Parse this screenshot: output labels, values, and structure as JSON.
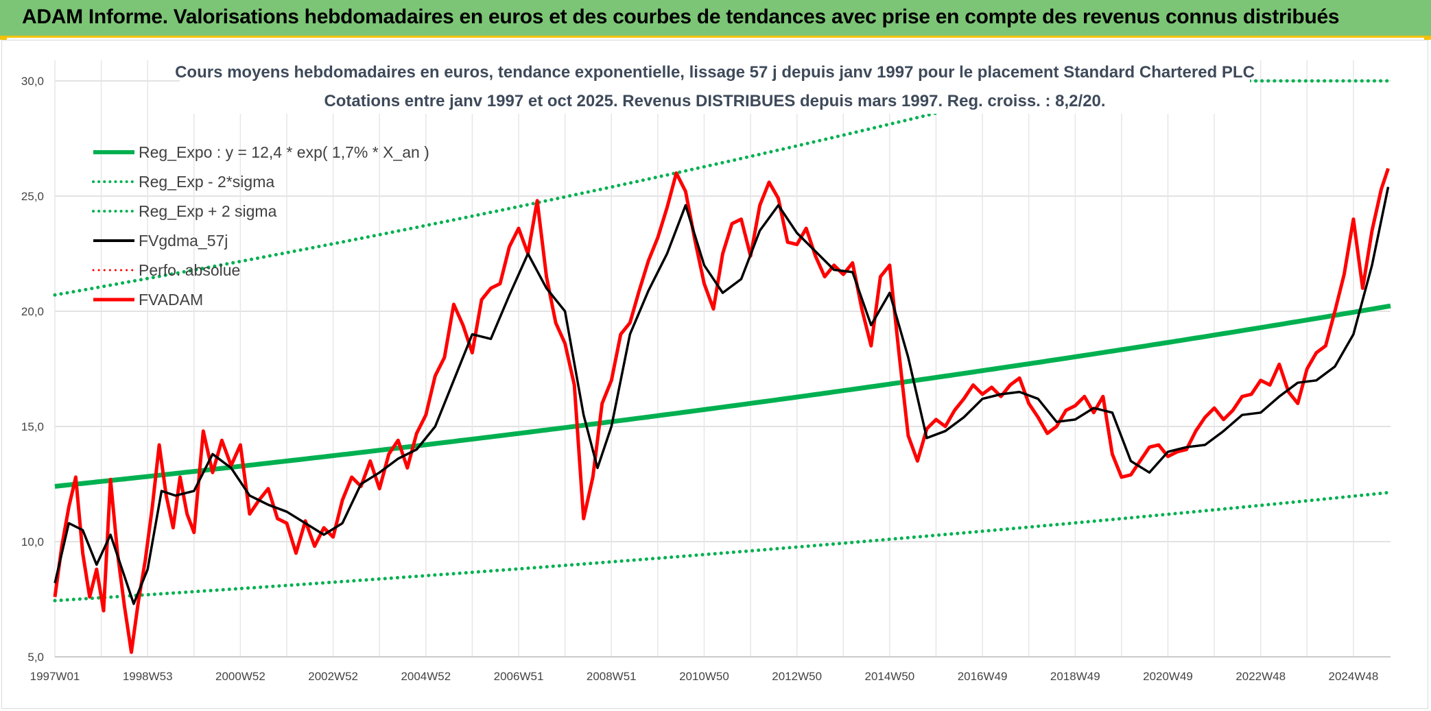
{
  "banner": {
    "title": "ADAM Informe. Valorisations hebdomadaires en euros et des courbes de tendances avec prise en compte des revenus connus distribués"
  },
  "colors": {
    "banner_bg": "#7cc576",
    "banner_border": "#f2c200",
    "trend": "#00b050",
    "price": "#ff0000",
    "smooth": "#000000",
    "grid": "#d9d9d9"
  },
  "chart_data": {
    "type": "line",
    "title": "Cours moyens hebdomadaires en euros, tendance exponentielle, lissage 57 j depuis janv 1997 pour le placement Standard Chartered PLC",
    "subtitle": "Cotations entre janv 1997 et oct 2025. Revenus DISTRIBUES depuis mars 1997. Reg. croiss. : 8,2/20.",
    "xlabel": "",
    "ylabel": "",
    "ylim": [
      5,
      30
    ],
    "xlim": [
      1997.0,
      2025.8
    ],
    "y_ticks": [
      "5,0",
      "10,0",
      "15,0",
      "20,0",
      "25,0",
      "30,0"
    ],
    "y_tick_values": [
      5,
      10,
      15,
      20,
      25,
      30
    ],
    "x_ticks": [
      "1997W01",
      "1998W53",
      "2000W52",
      "2002W52",
      "2004W52",
      "2006W51",
      "2008W51",
      "2010W50",
      "2012W50",
      "2014W50",
      "2016W49",
      "2018W49",
      "2020W49",
      "2022W48",
      "2024W48"
    ],
    "x_tick_positions": [
      1997.0,
      1999.0,
      2001.0,
      2003.0,
      2005.0,
      2007.0,
      2009.0,
      2011.0,
      2013.0,
      2015.0,
      2017.0,
      2019.0,
      2021.0,
      2023.0,
      2025.0
    ],
    "legend": [
      {
        "name": "Reg_Expo : y = 12,4 * exp( 1,7% *  X_an )",
        "color": "#00b050",
        "style": "solid",
        "width": 6
      },
      {
        "name": "Reg_Exp - 2*sigma",
        "color": "#00b050",
        "style": "dotted",
        "width": 4
      },
      {
        "name": "Reg_Exp + 2 sigma",
        "color": "#00b050",
        "style": "dotted",
        "width": 4
      },
      {
        "name": "FVgdma_57j",
        "color": "#000000",
        "style": "solid",
        "width": 4
      },
      {
        "name": "Perfo. absolue",
        "color": "#ff0000",
        "style": "dotted",
        "width": 3
      },
      {
        "name": "FVADAM",
        "color": "#ff0000",
        "style": "solid",
        "width": 5
      }
    ],
    "trend": {
      "a": 12.4,
      "rate": 0.017,
      "lower_factor": 0.6,
      "upper_factor": 1.67
    },
    "series": [
      {
        "name": "FVADAM",
        "x": [
          1997.0,
          1997.15,
          1997.3,
          1997.45,
          1997.6,
          1997.75,
          1997.9,
          1998.05,
          1998.2,
          1998.35,
          1998.5,
          1998.65,
          1998.8,
          1998.95,
          1999.1,
          1999.25,
          1999.4,
          1999.55,
          1999.7,
          1999.85,
          2000.0,
          2000.2,
          2000.4,
          2000.6,
          2000.8,
          2001.0,
          2001.2,
          2001.4,
          2001.6,
          2001.8,
          2002.0,
          2002.2,
          2002.4,
          2002.6,
          2002.8,
          2003.0,
          2003.2,
          2003.4,
          2003.6,
          2003.8,
          2004.0,
          2004.2,
          2004.4,
          2004.6,
          2004.8,
          2005.0,
          2005.2,
          2005.4,
          2005.6,
          2005.8,
          2006.0,
          2006.2,
          2006.4,
          2006.6,
          2006.8,
          2007.0,
          2007.2,
          2007.4,
          2007.6,
          2007.8,
          2008.0,
          2008.2,
          2008.4,
          2008.6,
          2008.8,
          2009.0,
          2009.2,
          2009.4,
          2009.6,
          2009.8,
          2010.0,
          2010.2,
          2010.4,
          2010.6,
          2010.8,
          2011.0,
          2011.2,
          2011.4,
          2011.6,
          2011.8,
          2012.0,
          2012.2,
          2012.4,
          2012.6,
          2012.8,
          2013.0,
          2013.2,
          2013.4,
          2013.6,
          2013.8,
          2014.0,
          2014.2,
          2014.4,
          2014.6,
          2014.8,
          2015.0,
          2015.2,
          2015.4,
          2015.6,
          2015.8,
          2016.0,
          2016.2,
          2016.4,
          2016.6,
          2016.8,
          2017.0,
          2017.2,
          2017.4,
          2017.6,
          2017.8,
          2018.0,
          2018.2,
          2018.4,
          2018.6,
          2018.8,
          2019.0,
          2019.2,
          2019.4,
          2019.6,
          2019.8,
          2020.0,
          2020.2,
          2020.4,
          2020.6,
          2020.8,
          2021.0,
          2021.2,
          2021.4,
          2021.6,
          2021.8,
          2022.0,
          2022.2,
          2022.4,
          2022.6,
          2022.8,
          2023.0,
          2023.2,
          2023.4,
          2023.6,
          2023.8,
          2024.0,
          2024.2,
          2024.4,
          2024.6,
          2024.8,
          2025.0,
          2025.2,
          2025.4,
          2025.6,
          2025.75
        ],
        "values": [
          7.6,
          9.8,
          11.5,
          12.8,
          9.5,
          7.6,
          8.8,
          7.0,
          12.7,
          9.5,
          7.2,
          5.2,
          7.4,
          9.2,
          11.5,
          14.2,
          12.0,
          10.6,
          12.8,
          11.2,
          10.4,
          14.8,
          13.0,
          14.4,
          13.3,
          14.2,
          11.2,
          11.8,
          12.3,
          11.0,
          10.8,
          9.5,
          10.9,
          9.8,
          10.6,
          10.2,
          11.8,
          12.8,
          12.4,
          13.5,
          12.3,
          13.8,
          14.4,
          13.2,
          14.7,
          15.5,
          17.2,
          18.0,
          20.3,
          19.4,
          18.2,
          20.5,
          21.0,
          21.2,
          22.8,
          23.6,
          22.5,
          24.8,
          21.5,
          19.5,
          18.6,
          16.8,
          11.0,
          12.8,
          16.0,
          17.0,
          19.0,
          19.5,
          20.9,
          22.2,
          23.2,
          24.5,
          26.0,
          25.2,
          23.1,
          21.2,
          20.1,
          22.5,
          23.8,
          24.0,
          22.4,
          24.6,
          25.6,
          24.9,
          23.0,
          22.9,
          23.6,
          22.4,
          21.5,
          22.0,
          21.6,
          22.1,
          20.1,
          18.5,
          21.5,
          22.0,
          18.2,
          14.6,
          13.5,
          14.9,
          15.3,
          15.0,
          15.7,
          16.2,
          16.8,
          16.4,
          16.7,
          16.3,
          16.8,
          17.1,
          16.0,
          15.4,
          14.7,
          15.0,
          15.7,
          15.9,
          16.3,
          15.6,
          16.3,
          13.8,
          12.8,
          12.9,
          13.5,
          14.1,
          14.2,
          13.7,
          13.9,
          14.0,
          14.8,
          15.4,
          15.8,
          15.3,
          15.7,
          16.3,
          16.4,
          17.0,
          16.8,
          17.7,
          16.5,
          16.0,
          17.5,
          18.2,
          18.5,
          20.0,
          21.6,
          24.0,
          21.0,
          23.5,
          25.3,
          26.2
        ]
      },
      {
        "name": "FVgdma_57j",
        "x": [
          1997.0,
          1997.3,
          1997.6,
          1997.9,
          1998.2,
          1998.5,
          1998.7,
          1999.0,
          1999.3,
          1999.6,
          2000.0,
          2000.4,
          2000.8,
          2001.2,
          2001.6,
          2002.0,
          2002.4,
          2002.8,
          2003.2,
          2003.6,
          2004.0,
          2004.4,
          2004.8,
          2005.2,
          2005.6,
          2006.0,
          2006.4,
          2006.8,
          2007.2,
          2007.6,
          2008.0,
          2008.4,
          2008.7,
          2009.0,
          2009.4,
          2009.8,
          2010.2,
          2010.6,
          2011.0,
          2011.4,
          2011.8,
          2012.2,
          2012.6,
          2013.0,
          2013.4,
          2013.8,
          2014.2,
          2014.6,
          2015.0,
          2015.4,
          2015.8,
          2016.2,
          2016.6,
          2017.0,
          2017.4,
          2017.8,
          2018.2,
          2018.6,
          2019.0,
          2019.4,
          2019.8,
          2020.2,
          2020.6,
          2021.0,
          2021.4,
          2021.8,
          2022.2,
          2022.6,
          2023.0,
          2023.4,
          2023.8,
          2024.2,
          2024.6,
          2025.0,
          2025.4,
          2025.75
        ],
        "values": [
          8.2,
          10.8,
          10.5,
          9.0,
          10.3,
          8.5,
          7.3,
          8.8,
          12.2,
          12.0,
          12.2,
          13.8,
          13.2,
          12.0,
          11.6,
          11.3,
          10.8,
          10.3,
          10.8,
          12.5,
          13.0,
          13.6,
          14.0,
          15.0,
          17.0,
          19.0,
          18.8,
          20.7,
          22.5,
          21.0,
          20.0,
          15.5,
          13.2,
          15.0,
          19.0,
          20.9,
          22.5,
          24.6,
          22.0,
          20.8,
          21.4,
          23.5,
          24.6,
          23.4,
          22.6,
          21.8,
          21.7,
          19.4,
          20.8,
          18.0,
          14.5,
          14.8,
          15.4,
          16.2,
          16.4,
          16.5,
          16.2,
          15.2,
          15.3,
          15.8,
          15.6,
          13.5,
          13.0,
          13.9,
          14.1,
          14.2,
          14.8,
          15.5,
          15.6,
          16.3,
          16.9,
          17.0,
          17.6,
          19.0,
          22.0,
          25.4
        ]
      }
    ]
  }
}
